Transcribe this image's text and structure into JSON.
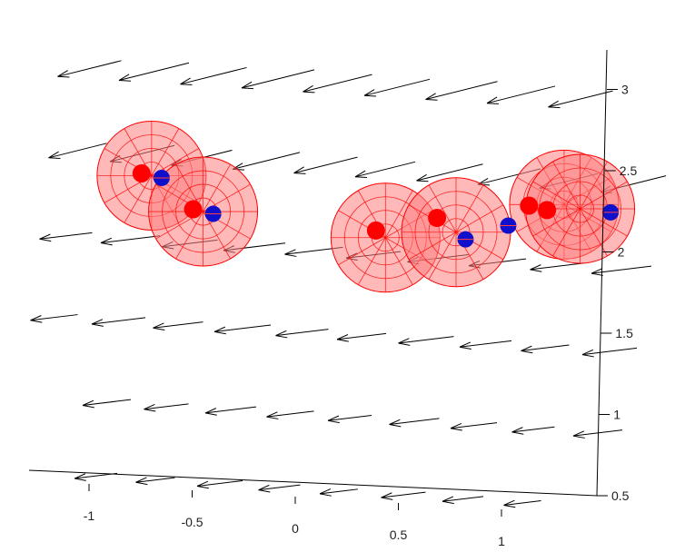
{
  "chart_data": {
    "type": "scatter",
    "title": "",
    "xlabel": "",
    "ylabel": "",
    "xlim": [
      -1.32,
      1.5
    ],
    "ylim": [
      0.5,
      3.2
    ],
    "x_ticks": [
      "-1",
      "-0.5",
      "0",
      "0.5",
      "1"
    ],
    "y_ticks": [
      "0.5",
      "1",
      "1.5",
      "2",
      "2.5",
      "3"
    ],
    "grid": false,
    "legend": "none",
    "colors": {
      "red_point": "#ff0000",
      "blue_point": "#1010cc",
      "sphere_fill": "#ff8080",
      "sphere_edge": "#ff0000",
      "arrow": "#000000"
    },
    "series": [
      {
        "marker": "red-dot",
        "points": [
          {
            "x": -0.84,
            "y": 2.44
          },
          {
            "x": -0.57,
            "y": 2.24
          },
          {
            "x": 0.33,
            "y": 2.18
          },
          {
            "x": 0.62,
            "y": 2.28
          },
          {
            "x": 1.06,
            "y": 2.39
          },
          {
            "x": 1.15,
            "y": 2.37
          }
        ]
      },
      {
        "marker": "blue-dot",
        "points": [
          {
            "x": -0.74,
            "y": 2.42
          },
          {
            "x": -0.47,
            "y": 2.22
          },
          {
            "x": 0.77,
            "y": 2.16
          },
          {
            "x": 0.97,
            "y": 2.26
          },
          {
            "x": 1.46,
            "y": 2.38
          }
        ]
      },
      {
        "marker": "wire-sphere",
        "points": [
          {
            "x": -0.79,
            "y": 2.43
          },
          {
            "x": -0.52,
            "y": 2.23
          },
          {
            "x": 0.38,
            "y": 2.14
          },
          {
            "x": 0.72,
            "y": 2.2
          },
          {
            "x": 1.23,
            "y": 2.41
          },
          {
            "x": 1.31,
            "y": 2.39
          }
        ]
      }
    ]
  }
}
